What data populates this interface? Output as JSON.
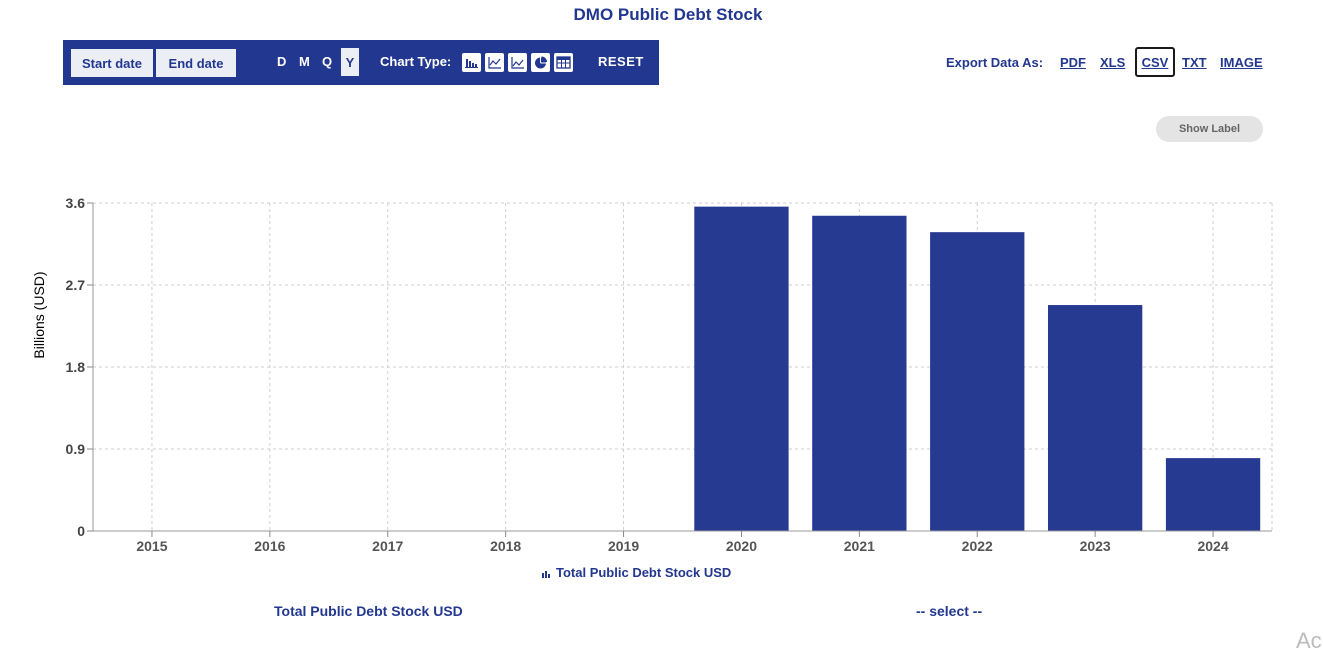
{
  "page_title": "DMO Public Debt Stock",
  "toolbar": {
    "start_date_label": "Start date",
    "end_date_label": "End date",
    "periods": [
      "D",
      "M",
      "Q",
      "Y"
    ],
    "active_period": "Y",
    "chart_type_label": "Chart Type:",
    "chart_type_icons": [
      "bar-chart-icon",
      "line-chart-icon",
      "area-chart-icon",
      "pie-chart-icon",
      "table-icon"
    ],
    "reset_label": "RESET",
    "background_color": "#22378f"
  },
  "export": {
    "label": "Export Data As:",
    "formats": [
      "PDF",
      "XLS",
      "CSV",
      "TXT",
      "IMAGE"
    ],
    "highlighted": "CSV"
  },
  "show_label_button": "Show Label",
  "chart_data": {
    "type": "bar",
    "title": "DMO Public Debt Stock",
    "categories": [
      "2015",
      "2016",
      "2017",
      "2018",
      "2019",
      "2020",
      "2021",
      "2022",
      "2023",
      "2024"
    ],
    "series": [
      {
        "name": "Total Public Debt Stock USD",
        "values": [
          null,
          null,
          null,
          null,
          null,
          3.56,
          3.46,
          3.28,
          2.48,
          0.8
        ],
        "color": "#263a92"
      }
    ],
    "ylabel": "Billions (USD)",
    "xlabel": "",
    "ylim": [
      0,
      3.6
    ],
    "yticks": [
      "0",
      "0.9",
      "1.8",
      "2.7",
      "3.6"
    ],
    "grid": true,
    "legend_position": "bottom"
  },
  "footer": {
    "series_label": "Total Public Debt Stock USD",
    "select_label": "-- select --",
    "corner_text": "Ac"
  }
}
